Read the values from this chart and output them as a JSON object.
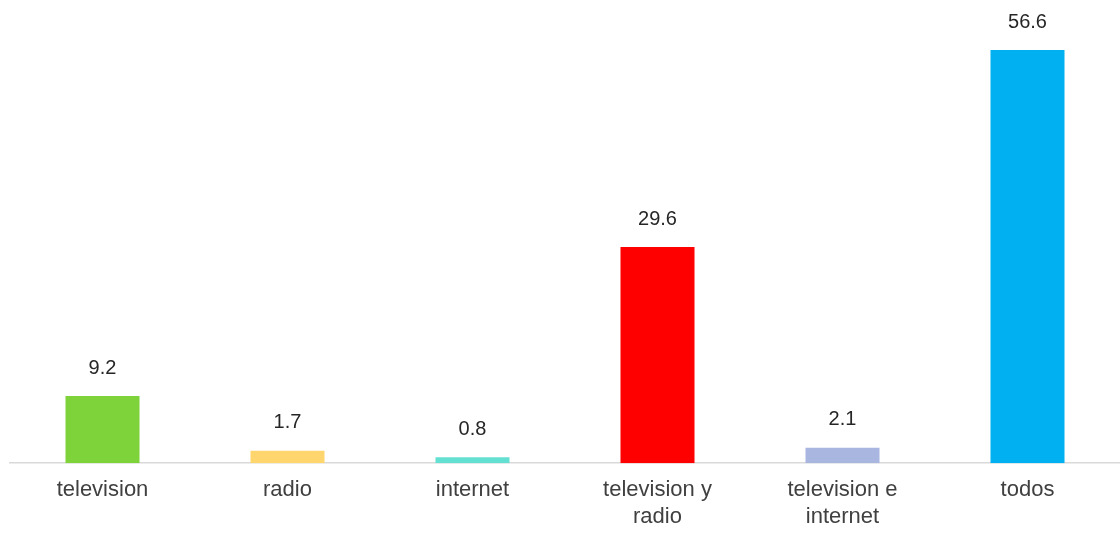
{
  "chart_data": {
    "type": "bar",
    "categories": [
      "television",
      "radio",
      "internet",
      "television y radio",
      "television e internet",
      "todos"
    ],
    "values": [
      9.2,
      1.7,
      0.8,
      29.6,
      2.1,
      56.6
    ],
    "colors": [
      "#7ed23a",
      "#ffd56e",
      "#64e0d2",
      "#ff0000",
      "#a9b6e0",
      "#00b0f0"
    ],
    "data_labels": true,
    "legend": false
  }
}
